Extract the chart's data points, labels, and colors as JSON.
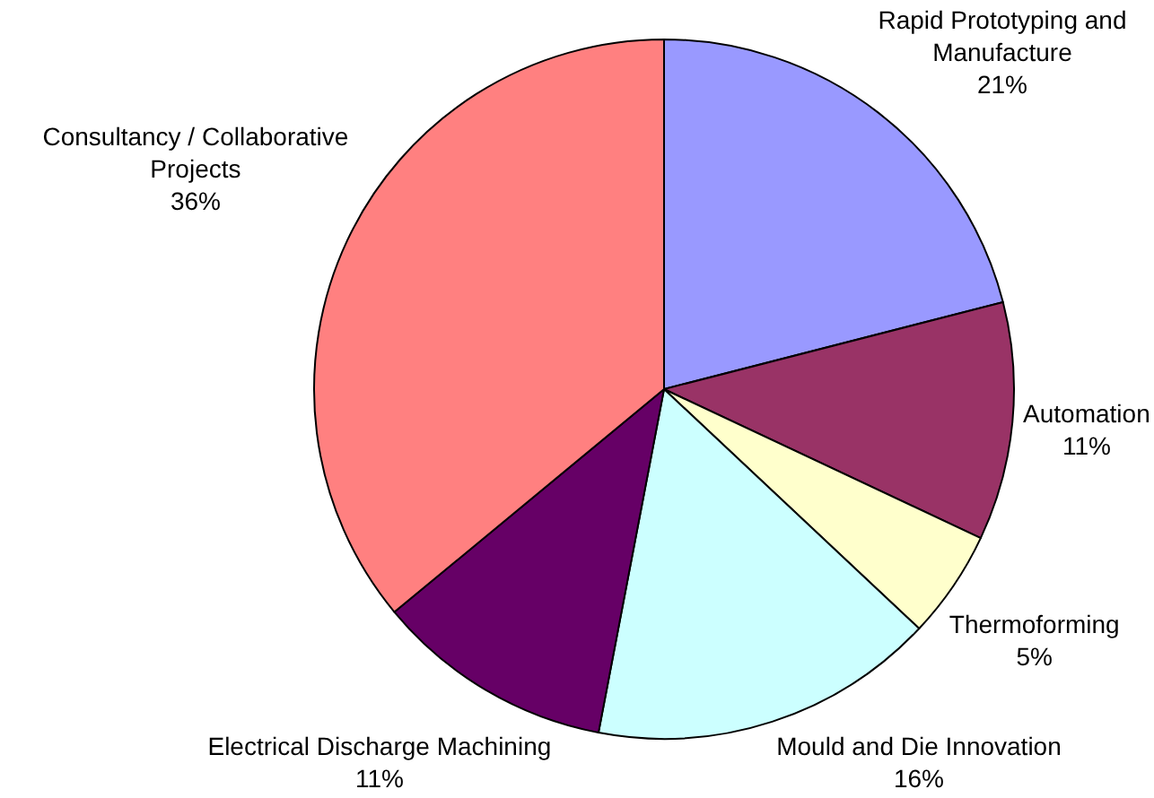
{
  "chart_data": {
    "type": "pie",
    "categories": [
      "Rapid Prototyping and Manufacture",
      "Automation",
      "Thermoforming",
      "Mould and Die Innovation",
      "Electrical Discharge Machining",
      "Consultancy / Collaborative Projects"
    ],
    "values": [
      21,
      11,
      5,
      16,
      11,
      36
    ],
    "colors": [
      "#9999ff",
      "#993366",
      "#ffffcc",
      "#ccffff",
      "#660066",
      "#ff8080"
    ],
    "value_labels": [
      "21%",
      "11%",
      "5%",
      "16%",
      "11%",
      "36%"
    ]
  }
}
